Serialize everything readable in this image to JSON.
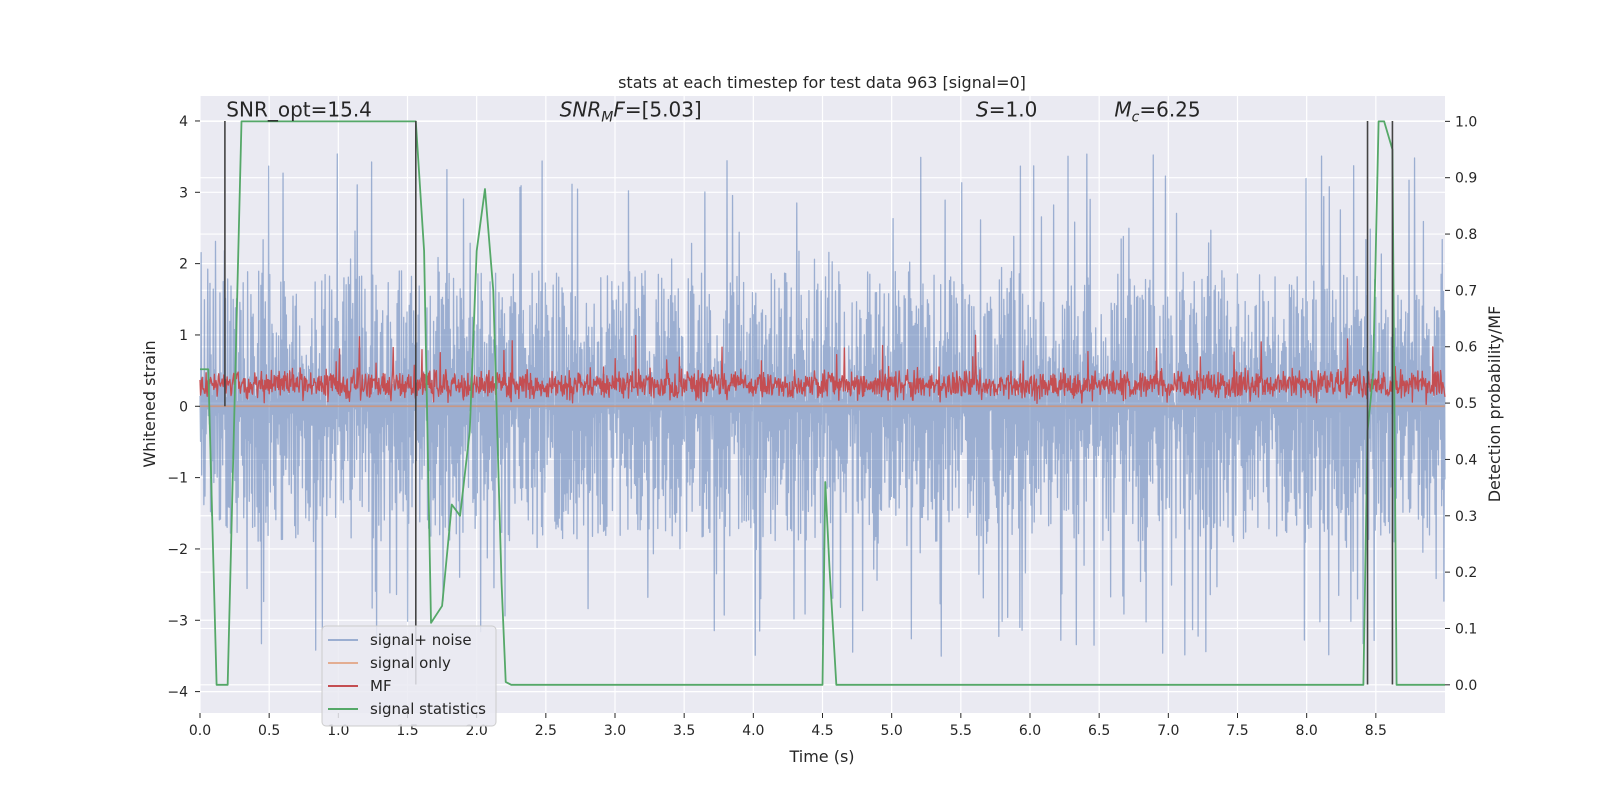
{
  "chart_data": {
    "type": "line",
    "title": "stats at each timestep for test data 963 [signal=0]",
    "xlabel": "Time (s)",
    "ylabel": "Whitened strain",
    "y2label": "Detection probability/MF",
    "xlim": [
      0.0,
      9.0
    ],
    "ylim": [
      -4.3,
      4.35
    ],
    "y2lim": [
      -0.05,
      1.045
    ],
    "xticks": [
      "0.0",
      "0.5",
      "1.0",
      "1.5",
      "2.0",
      "2.5",
      "3.0",
      "3.5",
      "4.0",
      "4.5",
      "5.0",
      "5.5",
      "6.0",
      "6.5",
      "7.0",
      "7.5",
      "8.0",
      "8.5"
    ],
    "yticks": [
      "−4",
      "−3",
      "−2",
      "−1",
      "0",
      "1",
      "2",
      "3",
      "4"
    ],
    "y2ticks": [
      "0.0",
      "0.1",
      "0.2",
      "0.3",
      "0.4",
      "0.5",
      "0.6",
      "0.7",
      "0.8",
      "0.9",
      "1.0"
    ],
    "grid": true,
    "legend_position": "lower-left",
    "annotations": [
      {
        "parts": [
          {
            "t": "SNR_opt=15.4",
            "style": "normal"
          }
        ],
        "x": 0.19,
        "y": 4.12
      },
      {
        "parts": [
          {
            "t": "SNR",
            "style": "italic"
          },
          {
            "t": "M",
            "style": "italic-sub"
          },
          {
            "t": "F",
            "style": "italic"
          },
          {
            "t": "=[5.03]",
            "style": "normal"
          }
        ],
        "x": 2.6,
        "y": 4.12
      },
      {
        "parts": [
          {
            "t": "S",
            "style": "italic"
          },
          {
            "t": "=1.0",
            "style": "normal"
          }
        ],
        "x": 5.61,
        "y": 4.12
      },
      {
        "parts": [
          {
            "t": "M",
            "style": "italic"
          },
          {
            "t": "c",
            "style": "italic-sub"
          },
          {
            "t": "=6.25",
            "style": "normal"
          }
        ],
        "x": 6.61,
        "y": 4.12
      }
    ],
    "vertical_markers": [
      {
        "x": 0.18,
        "y_from": 0.0,
        "y_to": 4.0
      },
      {
        "x": 1.56,
        "y_from": -3.9,
        "y_to": 4.0
      },
      {
        "x": 8.44,
        "y_from": -3.9,
        "y_to": 4.0
      },
      {
        "x": 8.62,
        "y_from": -3.9,
        "y_to": 4.0
      }
    ],
    "series": [
      {
        "name": "signal+ noise",
        "color": "#4c72b0",
        "opacity": 0.5,
        "axis": "left",
        "kind": "noise",
        "sample_count": 2250,
        "typical_range": [
          -1.9,
          1.9
        ],
        "peak_range": [
          -3.6,
          3.6
        ]
      },
      {
        "name": "signal only",
        "color": "#dd8452",
        "opacity": 0.6,
        "axis": "left",
        "kind": "flat",
        "x": [
          0.0,
          9.0
        ],
        "y": [
          0.0,
          0.0
        ]
      },
      {
        "name": "MF",
        "color": "#c44e52",
        "opacity": 1.0,
        "axis": "left",
        "kind": "noise",
        "sample_count": 2250,
        "baseline": 0.3,
        "typical_range": [
          0.05,
          0.6
        ],
        "peak_range": [
          0.0,
          1.0
        ]
      },
      {
        "name": "signal statistics",
        "color": "#55a868",
        "opacity": 1.0,
        "axis": "right",
        "kind": "line",
        "x": [
          0.0,
          0.06,
          0.12,
          0.2,
          0.25,
          0.3,
          0.6,
          1.0,
          1.4,
          1.56,
          1.62,
          1.67,
          1.75,
          1.82,
          1.88,
          1.95,
          2.0,
          2.06,
          2.12,
          2.18,
          2.21,
          2.25,
          2.5,
          3.0,
          3.5,
          3.95,
          4.0,
          4.5,
          4.52,
          4.55,
          4.6,
          4.65,
          5.0,
          6.0,
          7.0,
          8.0,
          8.41,
          8.44,
          8.48,
          8.52,
          8.56,
          8.62,
          8.65,
          8.7,
          9.0
        ],
        "y": [
          0.56,
          0.56,
          0.0,
          0.0,
          0.5,
          1.0,
          1.0,
          1.0,
          1.0,
          1.0,
          0.77,
          0.11,
          0.14,
          0.32,
          0.3,
          0.45,
          0.77,
          0.88,
          0.7,
          0.18,
          0.005,
          0.0,
          0.0,
          0.0,
          0.0,
          0.0,
          0.0,
          0.0,
          0.36,
          0.21,
          0.0,
          0.0,
          0.0,
          0.0,
          0.0,
          0.0,
          0.0,
          0.45,
          0.55,
          1.0,
          1.0,
          0.95,
          0.0,
          0.0,
          0.0
        ]
      }
    ]
  }
}
